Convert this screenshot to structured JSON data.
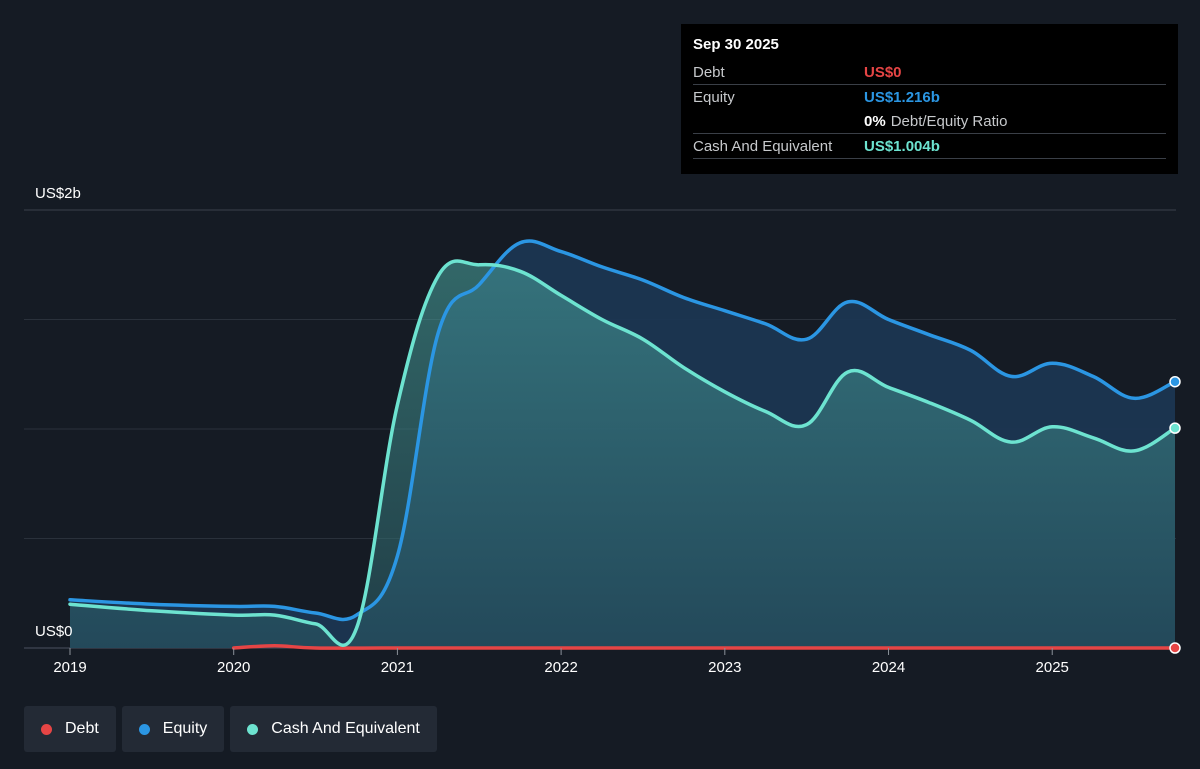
{
  "chart_data": {
    "type": "area",
    "y_label_top": "US$2b",
    "y_label_bottom": "US$0",
    "ylim": [
      0,
      2.0
    ],
    "xlim": [
      2019.0,
      2025.75
    ],
    "x_ticks": [
      "2019",
      "2020",
      "2021",
      "2022",
      "2023",
      "2024",
      "2025"
    ],
    "grid": true,
    "series": [
      {
        "name": "Debt",
        "color": "#e64545",
        "points": [
          [
            2020.0,
            0.0
          ],
          [
            2020.25,
            0.01
          ],
          [
            2020.5,
            0.0
          ],
          [
            2021.0,
            0.0
          ],
          [
            2022.0,
            0.0
          ],
          [
            2023.0,
            0.0
          ],
          [
            2024.0,
            0.0
          ],
          [
            2025.0,
            0.0
          ],
          [
            2025.75,
            0.0
          ]
        ]
      },
      {
        "name": "Equity",
        "color": "#2b96e3",
        "points": [
          [
            2019.0,
            0.22
          ],
          [
            2019.5,
            0.2
          ],
          [
            2020.0,
            0.19
          ],
          [
            2020.25,
            0.19
          ],
          [
            2020.5,
            0.16
          ],
          [
            2020.75,
            0.15
          ],
          [
            2021.0,
            0.42
          ],
          [
            2021.25,
            1.44
          ],
          [
            2021.5,
            1.66
          ],
          [
            2021.75,
            1.85
          ],
          [
            2022.0,
            1.81
          ],
          [
            2022.25,
            1.74
          ],
          [
            2022.5,
            1.68
          ],
          [
            2022.75,
            1.6
          ],
          [
            2023.0,
            1.54
          ],
          [
            2023.25,
            1.48
          ],
          [
            2023.5,
            1.41
          ],
          [
            2023.75,
            1.58
          ],
          [
            2024.0,
            1.5
          ],
          [
            2024.25,
            1.43
          ],
          [
            2024.5,
            1.36
          ],
          [
            2024.75,
            1.24
          ],
          [
            2025.0,
            1.3
          ],
          [
            2025.25,
            1.24
          ],
          [
            2025.5,
            1.14
          ],
          [
            2025.75,
            1.216
          ]
        ]
      },
      {
        "name": "Cash And Equivalent",
        "color": "#6de3d0",
        "points": [
          [
            2019.0,
            0.2
          ],
          [
            2019.5,
            0.17
          ],
          [
            2020.0,
            0.15
          ],
          [
            2020.25,
            0.15
          ],
          [
            2020.5,
            0.11
          ],
          [
            2020.75,
            0.09
          ],
          [
            2021.0,
            1.11
          ],
          [
            2021.25,
            1.7
          ],
          [
            2021.5,
            1.75
          ],
          [
            2021.75,
            1.72
          ],
          [
            2022.0,
            1.61
          ],
          [
            2022.25,
            1.5
          ],
          [
            2022.5,
            1.41
          ],
          [
            2022.75,
            1.28
          ],
          [
            2023.0,
            1.17
          ],
          [
            2023.25,
            1.08
          ],
          [
            2023.5,
            1.02
          ],
          [
            2023.75,
            1.26
          ],
          [
            2024.0,
            1.19
          ],
          [
            2024.25,
            1.12
          ],
          [
            2024.5,
            1.04
          ],
          [
            2024.75,
            0.94
          ],
          [
            2025.0,
            1.01
          ],
          [
            2025.25,
            0.96
          ],
          [
            2025.5,
            0.9
          ],
          [
            2025.75,
            1.004
          ]
        ]
      }
    ]
  },
  "tooltip": {
    "date": "Sep 30 2025",
    "debt_label": "Debt",
    "debt_value": "US$0",
    "equity_label": "Equity",
    "equity_value": "US$1.216b",
    "ratio_value": "0%",
    "ratio_label": "Debt/Equity Ratio",
    "cash_label": "Cash And Equivalent",
    "cash_value": "US$1.004b"
  },
  "legend": {
    "items": [
      {
        "label": "Debt",
        "color": "#e64545"
      },
      {
        "label": "Equity",
        "color": "#2b96e3"
      },
      {
        "label": "Cash And Equivalent",
        "color": "#6de3d0"
      }
    ]
  }
}
